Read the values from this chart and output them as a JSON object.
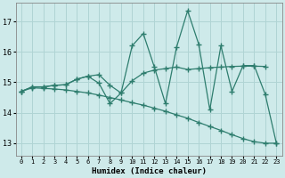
{
  "title": "",
  "xlabel": "Humidex (Indice chaleur)",
  "ylabel": "",
  "background_color": "#ceeaea",
  "grid_color": "#b0d4d4",
  "line_color": "#2e7d6e",
  "xlim": [
    -0.5,
    23.5
  ],
  "ylim": [
    12.6,
    17.6
  ],
  "yticks": [
    13,
    14,
    15,
    16,
    17
  ],
  "xticks": [
    0,
    1,
    2,
    3,
    4,
    5,
    6,
    7,
    8,
    9,
    10,
    11,
    12,
    13,
    14,
    15,
    16,
    17,
    18,
    19,
    20,
    21,
    22,
    23
  ],
  "x": [
    0,
    1,
    2,
    3,
    4,
    5,
    6,
    7,
    8,
    9,
    10,
    11,
    12,
    13,
    14,
    15,
    16,
    17,
    18,
    19,
    20,
    21,
    22,
    23
  ],
  "line1": [
    14.7,
    14.85,
    14.85,
    14.9,
    14.92,
    15.1,
    15.2,
    15.25,
    14.9,
    14.65,
    15.05,
    15.3,
    15.4,
    15.45,
    15.5,
    15.42,
    15.45,
    15.48,
    15.5,
    15.52,
    15.53,
    15.53,
    15.52,
    null
  ],
  "line2": [
    14.7,
    14.85,
    14.85,
    14.9,
    14.92,
    15.1,
    15.2,
    14.97,
    14.3,
    14.65,
    16.2,
    16.6,
    15.5,
    14.3,
    16.15,
    17.35,
    16.25,
    14.1,
    16.2,
    14.7,
    15.55,
    15.55,
    14.6,
    13.0
  ],
  "line3": [
    14.7,
    14.82,
    14.8,
    14.78,
    14.75,
    14.7,
    14.65,
    14.58,
    14.5,
    14.42,
    14.33,
    14.25,
    14.15,
    14.05,
    13.93,
    13.82,
    13.68,
    13.55,
    13.42,
    13.28,
    13.15,
    13.05,
    13.0,
    13.0
  ]
}
